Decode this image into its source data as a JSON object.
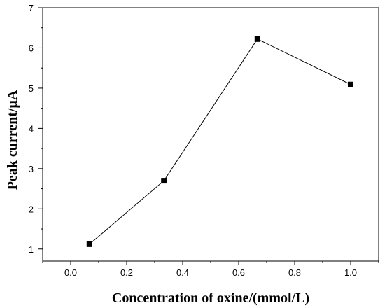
{
  "chart_data": {
    "type": "line",
    "title": "",
    "xlabel": "Concentration of oxine/(mmol/L)",
    "ylabel": "Peak current/μA",
    "xlim": [
      -0.1,
      1.1
    ],
    "ylim": [
      0.7,
      7
    ],
    "x_ticks": [
      0.0,
      0.2,
      0.4,
      0.6,
      0.8,
      1.0
    ],
    "x_tick_labels": [
      "0.0",
      "0.2",
      "0.4",
      "0.6",
      "0.8",
      "1.0"
    ],
    "y_ticks": [
      1,
      2,
      3,
      4,
      5,
      6,
      7
    ],
    "y_tick_labels": [
      "1",
      "2",
      "3",
      "4",
      "5",
      "6",
      "7"
    ],
    "grid": false,
    "legend": false,
    "marker": "square",
    "line_color": "#000000",
    "marker_color": "#000000",
    "series": [
      {
        "x": [
          0.067,
          0.333,
          0.667,
          1.0
        ],
        "y": [
          1.12,
          2.7,
          6.22,
          5.09
        ]
      }
    ]
  }
}
